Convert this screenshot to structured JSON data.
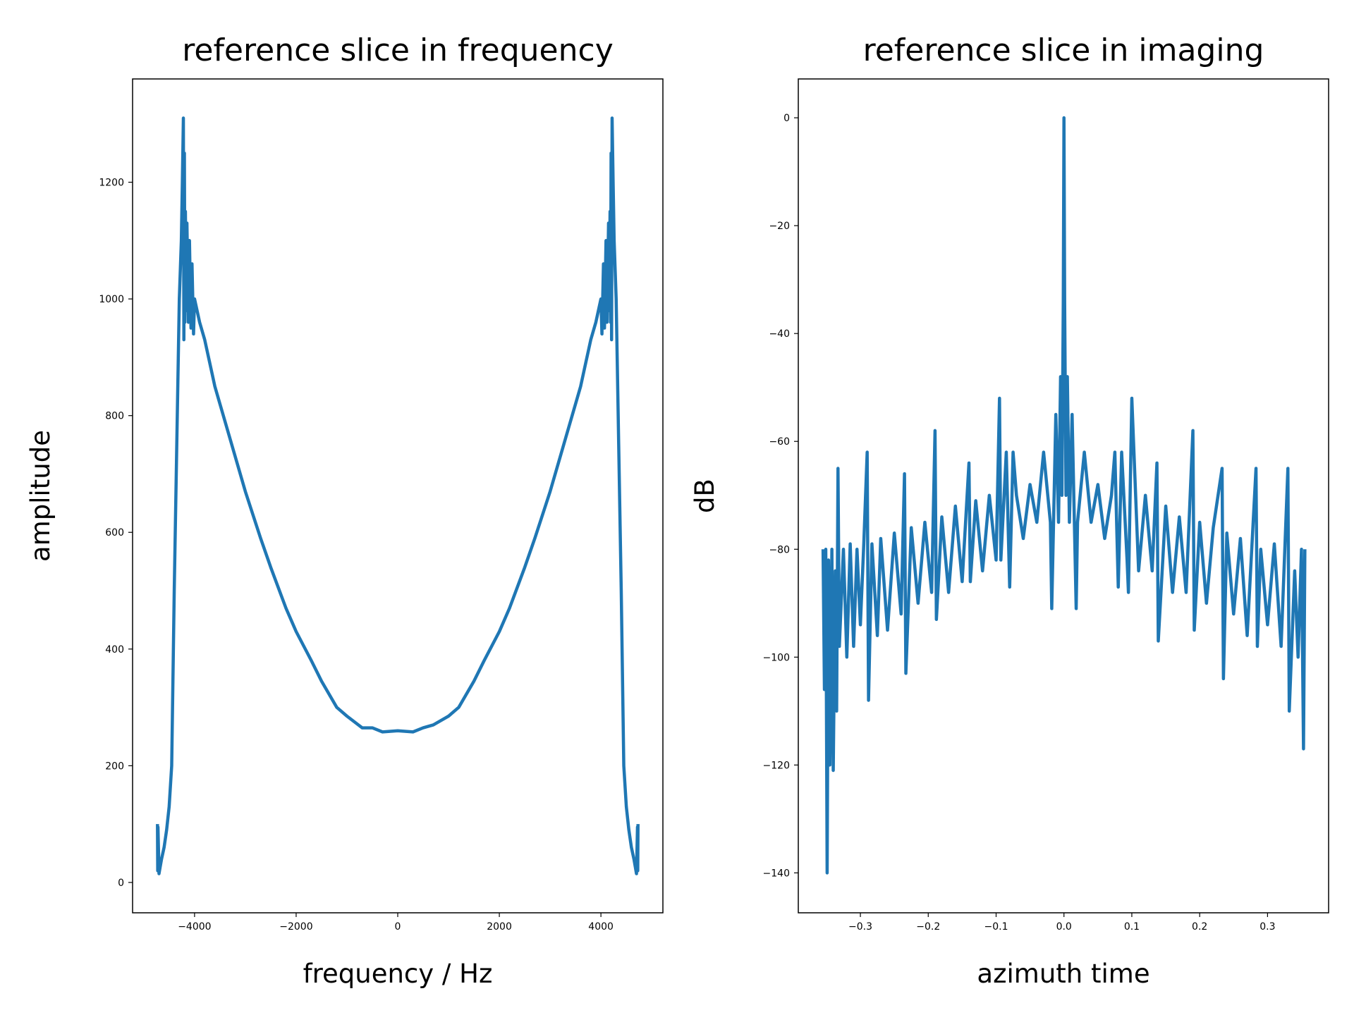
{
  "chart_data": [
    {
      "type": "line",
      "title": "reference slice in frequency",
      "x_label": "frequency / Hz",
      "y_label": "amplitude",
      "xlim": [
        -5220,
        5220
      ],
      "ylim": [
        -52,
        1377
      ],
      "xticks": [
        {
          "value": -4000,
          "label": "−4000"
        },
        {
          "value": -2000,
          "label": "−2000"
        },
        0,
        2000,
        4000
      ],
      "yticks": [
        0,
        200,
        400,
        600,
        800,
        1000,
        1200
      ],
      "series": [
        {
          "color": "#1f77b4",
          "x": [
            -4730,
            -4725,
            -4720,
            -4700,
            -4650,
            -4600,
            -4550,
            -4500,
            -4450,
            -4400,
            -4350,
            -4300,
            -4260,
            -4240,
            -4220,
            -4210,
            -4200,
            -4190,
            -4180,
            -4160,
            -4150,
            -4120,
            -4100,
            -4070,
            -4050,
            -4020,
            -4000,
            -3900,
            -3800,
            -3700,
            -3600,
            -3500,
            -3300,
            -3000,
            -2700,
            -2500,
            -2200,
            -2000,
            -1700,
            -1500,
            -1200,
            -1000,
            -700,
            -500,
            -300,
            0,
            300,
            500,
            700,
            1000,
            1200,
            1500,
            1700,
            2000,
            2200,
            2500,
            2700,
            3000,
            3300,
            3500,
            3600,
            3700,
            3800,
            3900,
            4000,
            4020,
            4050,
            4070,
            4100,
            4120,
            4150,
            4160,
            4180,
            4190,
            4200,
            4210,
            4220,
            4240,
            4260,
            4300,
            4350,
            4400,
            4450,
            4500,
            4550,
            4600,
            4650,
            4700,
            4720,
            4725,
            4730
          ],
          "values": [
            100,
            20,
            95,
            15,
            40,
            60,
            90,
            130,
            200,
            500,
            750,
            1000,
            1100,
            1200,
            1310,
            930,
            1250,
            960,
            1150,
            980,
            1130,
            960,
            1100,
            950,
            1060,
            940,
            1000,
            960,
            930,
            890,
            850,
            820,
            760,
            670,
            590,
            540,
            470,
            430,
            380,
            345,
            300,
            285,
            265,
            265,
            258,
            260,
            258,
            265,
            270,
            285,
            300,
            345,
            380,
            430,
            470,
            540,
            590,
            670,
            760,
            820,
            850,
            890,
            930,
            960,
            1000,
            940,
            1060,
            950,
            1100,
            960,
            1130,
            980,
            1150,
            960,
            1250,
            930,
            1310,
            1200,
            1100,
            1000,
            750,
            500,
            200,
            130,
            90,
            60,
            40,
            15,
            95,
            20,
            100
          ]
        }
      ]
    },
    {
      "type": "line",
      "title": "reference slice in imaging",
      "x_label": "azimuth time",
      "y_label": "dB",
      "xlim": [
        -0.3915,
        0.39
      ],
      "ylim": [
        -147.4,
        7.2
      ],
      "xticks": [
        {
          "value": -0.3,
          "label": "−0.3"
        },
        {
          "value": -0.2,
          "label": "−0.2"
        },
        {
          "value": -0.1,
          "label": "−0.1"
        },
        {
          "value": 0,
          "label": "0.0"
        },
        0.1,
        0.2,
        0.3
      ],
      "yticks": [
        0,
        {
          "value": -20,
          "label": "−20"
        },
        {
          "value": -40,
          "label": "−40"
        },
        {
          "value": -60,
          "label": "−60"
        },
        {
          "value": -80,
          "label": "−80"
        },
        {
          "value": -100,
          "label": "−100"
        },
        {
          "value": -120,
          "label": "−120"
        },
        {
          "value": -140,
          "label": "−140"
        }
      ],
      "series": [
        {
          "color": "#1f77b4",
          "x": [
            -0.355,
            -0.353,
            -0.351,
            -0.349,
            -0.347,
            -0.345,
            -0.342,
            -0.34,
            -0.337,
            -0.335,
            -0.333,
            -0.331,
            -0.325,
            -0.32,
            -0.315,
            -0.31,
            -0.305,
            -0.3,
            -0.295,
            -0.29,
            -0.288,
            -0.283,
            -0.275,
            -0.27,
            -0.26,
            -0.25,
            -0.24,
            -0.235,
            -0.233,
            -0.225,
            -0.215,
            -0.205,
            -0.195,
            -0.19,
            -0.188,
            -0.18,
            -0.17,
            -0.16,
            -0.15,
            -0.14,
            -0.138,
            -0.13,
            -0.12,
            -0.11,
            -0.1,
            -0.095,
            -0.093,
            -0.085,
            -0.08,
            -0.075,
            -0.07,
            -0.06,
            -0.05,
            -0.04,
            -0.03,
            -0.02,
            -0.018,
            -0.012,
            -0.008,
            -0.005,
            -0.003,
            -0.001,
            0,
            0.001,
            0.003,
            0.005,
            0.008,
            0.012,
            0.018,
            0.02,
            0.03,
            0.04,
            0.05,
            0.06,
            0.07,
            0.075,
            0.08,
            0.085,
            0.093,
            0.095,
            0.1,
            0.11,
            0.12,
            0.13,
            0.137,
            0.139,
            0.15,
            0.16,
            0.17,
            0.18,
            0.19,
            0.192,
            0.2,
            0.21,
            0.22,
            0.233,
            0.235,
            0.24,
            0.25,
            0.26,
            0.27,
            0.283,
            0.285,
            0.29,
            0.3,
            0.31,
            0.32,
            0.33,
            0.332,
            0.34,
            0.345,
            0.35,
            0.353,
            0.355
          ],
          "values": [
            -80,
            -106,
            -80,
            -140,
            -82,
            -120,
            -80,
            -121,
            -84,
            -110,
            -65,
            -98,
            -80,
            -100,
            -79,
            -98,
            -80,
            -94,
            -79,
            -62,
            -108,
            -79,
            -96,
            -78,
            -95,
            -77,
            -92,
            -66,
            -103,
            -76,
            -90,
            -75,
            -88,
            -58,
            -93,
            -74,
            -88,
            -72,
            -86,
            -64,
            -86,
            -71,
            -84,
            -70,
            -82,
            -52,
            -82,
            -62,
            -87,
            -62,
            -70,
            -78,
            -68,
            -75,
            -62,
            -75,
            -91,
            -55,
            -75,
            -48,
            -70,
            -34,
            0,
            -34,
            -70,
            -48,
            -75,
            -55,
            -91,
            -75,
            -62,
            -75,
            -68,
            -78,
            -70,
            -62,
            -87,
            -62,
            -82,
            -88,
            -52,
            -84,
            -70,
            -84,
            -64,
            -97,
            -72,
            -88,
            -74,
            -88,
            -58,
            -95,
            -75,
            -90,
            -76,
            -65,
            -104,
            -77,
            -92,
            -78,
            -96,
            -65,
            -98,
            -80,
            -94,
            -79,
            -98,
            -65,
            -110,
            -84,
            -100,
            -80,
            -117,
            -80
          ]
        }
      ]
    }
  ]
}
